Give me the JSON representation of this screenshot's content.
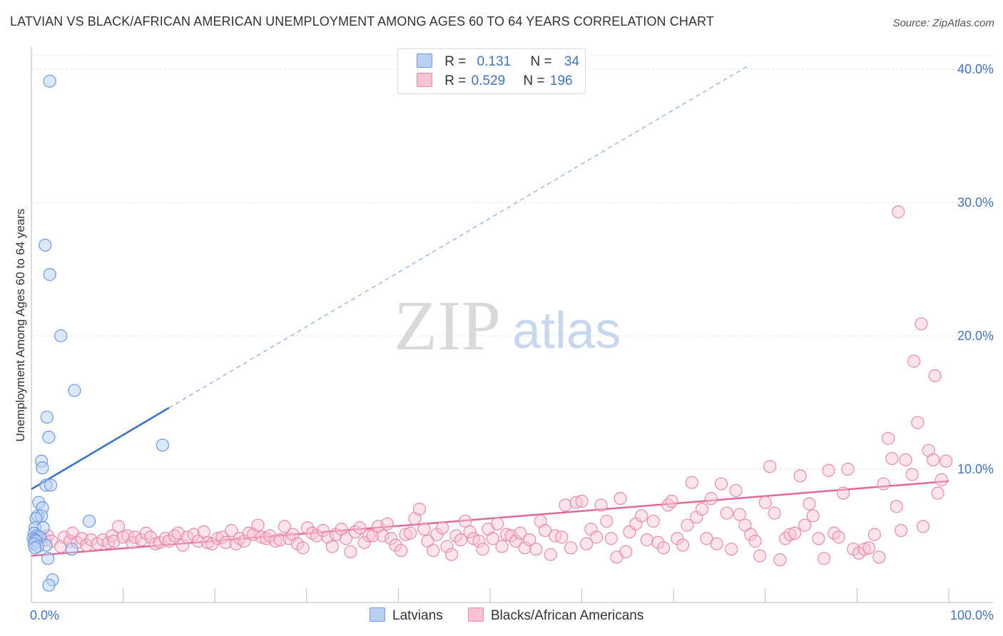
{
  "title": "LATVIAN VS BLACK/AFRICAN AMERICAN UNEMPLOYMENT AMONG AGES 60 TO 64 YEARS CORRELATION CHART",
  "source": "Source: ZipAtlas.com",
  "watermark": {
    "zip": "ZIP",
    "atlas": "atlas"
  },
  "colors": {
    "latvian_fill": "#b9d0f2",
    "latvian_stroke": "#6b9be0",
    "latvian_line": "#2f6fcf",
    "black_fill": "#f8c3d4",
    "black_stroke": "#e88aaa",
    "black_line": "#e0689a",
    "axis_text": "#3d74c9",
    "grid": "#dddddd"
  },
  "legend": {
    "rows": [
      {
        "r_label": "R =",
        "r_value": "0.131",
        "n_label": "N =",
        "n_value": "34"
      },
      {
        "r_label": "R =",
        "r_value": "0.529",
        "n_label": "N =",
        "n_value": "196"
      }
    ]
  },
  "bottom_legend": {
    "latvians": "Latvians",
    "blacks": "Blacks/African Americans"
  },
  "chart_data": {
    "type": "scatter",
    "title": "LATVIAN VS BLACK/AFRICAN AMERICAN UNEMPLOYMENT AMONG AGES 60 TO 64 YEARS CORRELATION CHART",
    "xlabel": "",
    "ylabel": "Unemployment Among Ages 60 to 64 years",
    "xlim": [
      0,
      100
    ],
    "ylim": [
      0,
      42
    ],
    "x_tick_labels": [
      "0.0%",
      "100.0%"
    ],
    "y_ticks": [
      10,
      20,
      30,
      40
    ],
    "y_tick_labels": [
      "10.0%",
      "20.0%",
      "30.0%",
      "40.0%"
    ],
    "grid": true,
    "series": [
      {
        "name": "Latvians",
        "R": 0.131,
        "N": 34,
        "trend": {
          "x0": 0,
          "y0": 8.5,
          "x1": 15,
          "y1": 14.6,
          "dashed_to_x": 78,
          "dashed_to_y": 40.2
        },
        "points": [
          [
            2.0,
            39.1
          ],
          [
            1.5,
            26.8
          ],
          [
            2.0,
            24.6
          ],
          [
            3.2,
            20.0
          ],
          [
            4.7,
            15.9
          ],
          [
            1.7,
            13.9
          ],
          [
            1.9,
            12.4
          ],
          [
            14.3,
            11.8
          ],
          [
            1.1,
            10.6
          ],
          [
            1.2,
            10.1
          ],
          [
            1.6,
            8.8
          ],
          [
            2.1,
            8.8
          ],
          [
            0.8,
            7.5
          ],
          [
            1.2,
            7.1
          ],
          [
            0.7,
            6.5
          ],
          [
            1.1,
            6.5
          ],
          [
            0.5,
            6.3
          ],
          [
            6.3,
            6.1
          ],
          [
            0.4,
            5.6
          ],
          [
            1.3,
            5.6
          ],
          [
            0.3,
            5.2
          ],
          [
            0.6,
            5.0
          ],
          [
            0.9,
            4.9
          ],
          [
            0.2,
            4.8
          ],
          [
            0.4,
            4.7
          ],
          [
            0.5,
            4.6
          ],
          [
            0.3,
            4.4
          ],
          [
            1.6,
            4.3
          ],
          [
            0.7,
            4.2
          ],
          [
            0.4,
            4.1
          ],
          [
            4.4,
            4.0
          ],
          [
            1.8,
            3.3
          ],
          [
            2.3,
            1.7
          ],
          [
            1.9,
            1.3
          ]
        ]
      },
      {
        "name": "Blacks/African Americans",
        "R": 0.529,
        "N": 196,
        "trend": {
          "x0": 0,
          "y0": 3.5,
          "x1": 100,
          "y1": 9.1
        },
        "points": [
          [
            1.0,
            4.9
          ],
          [
            1.5,
            4.7
          ],
          [
            1.8,
            5.0
          ],
          [
            2.2,
            4.6
          ],
          [
            3.2,
            4.2
          ],
          [
            3.6,
            4.9
          ],
          [
            4.2,
            4.6
          ],
          [
            4.5,
            5.2
          ],
          [
            5.0,
            4.5
          ],
          [
            5.5,
            4.8
          ],
          [
            6.0,
            4.3
          ],
          [
            6.5,
            4.7
          ],
          [
            7.2,
            4.4
          ],
          [
            7.8,
            4.7
          ],
          [
            8.4,
            4.5
          ],
          [
            8.8,
            5.0
          ],
          [
            9.0,
            4.6
          ],
          [
            9.5,
            5.7
          ],
          [
            10.0,
            4.9
          ],
          [
            10.5,
            5.0
          ],
          [
            11.0,
            4.5
          ],
          [
            11.3,
            4.9
          ],
          [
            12.0,
            4.7
          ],
          [
            12.5,
            5.2
          ],
          [
            13.0,
            4.9
          ],
          [
            13.5,
            4.4
          ],
          [
            14.0,
            4.5
          ],
          [
            14.6,
            4.8
          ],
          [
            15.0,
            4.6
          ],
          [
            15.6,
            5.0
          ],
          [
            16.0,
            5.2
          ],
          [
            16.5,
            4.3
          ],
          [
            17.0,
            4.9
          ],
          [
            17.7,
            5.1
          ],
          [
            18.2,
            4.6
          ],
          [
            18.8,
            5.3
          ],
          [
            19.2,
            4.5
          ],
          [
            19.7,
            4.4
          ],
          [
            20.3,
            4.8
          ],
          [
            20.8,
            4.9
          ],
          [
            21.2,
            4.5
          ],
          [
            21.8,
            5.4
          ],
          [
            22.3,
            4.4
          ],
          [
            22.7,
            4.8
          ],
          [
            23.2,
            4.6
          ],
          [
            23.7,
            5.2
          ],
          [
            24.2,
            5.1
          ],
          [
            24.7,
            5.8
          ],
          [
            25.1,
            4.9
          ],
          [
            25.6,
            4.8
          ],
          [
            26.0,
            5.0
          ],
          [
            26.6,
            4.6
          ],
          [
            27.1,
            4.7
          ],
          [
            27.6,
            5.7
          ],
          [
            28.1,
            4.8
          ],
          [
            28.5,
            5.1
          ],
          [
            29.0,
            4.4
          ],
          [
            29.6,
            4.1
          ],
          [
            30.1,
            5.6
          ],
          [
            30.6,
            5.2
          ],
          [
            31.1,
            5.0
          ],
          [
            31.8,
            5.4
          ],
          [
            32.3,
            4.9
          ],
          [
            32.8,
            4.2
          ],
          [
            33.2,
            5.1
          ],
          [
            33.8,
            5.5
          ],
          [
            34.3,
            4.8
          ],
          [
            34.8,
            3.8
          ],
          [
            35.3,
            5.3
          ],
          [
            35.8,
            5.6
          ],
          [
            36.3,
            4.5
          ],
          [
            36.8,
            5.0
          ],
          [
            37.2,
            5.0
          ],
          [
            37.8,
            5.7
          ],
          [
            38.3,
            5.0
          ],
          [
            38.8,
            5.9
          ],
          [
            39.2,
            4.8
          ],
          [
            39.7,
            4.3
          ],
          [
            40.3,
            3.9
          ],
          [
            40.8,
            5.1
          ],
          [
            41.3,
            5.2
          ],
          [
            41.8,
            6.3
          ],
          [
            42.3,
            7.0
          ],
          [
            42.8,
            5.5
          ],
          [
            43.2,
            4.6
          ],
          [
            43.8,
            3.9
          ],
          [
            44.2,
            5.1
          ],
          [
            44.8,
            5.6
          ],
          [
            45.3,
            4.2
          ],
          [
            45.8,
            3.6
          ],
          [
            46.3,
            5.0
          ],
          [
            46.8,
            4.7
          ],
          [
            47.3,
            6.1
          ],
          [
            47.8,
            5.3
          ],
          [
            48.2,
            4.8
          ],
          [
            48.8,
            4.6
          ],
          [
            49.2,
            4.0
          ],
          [
            49.8,
            5.5
          ],
          [
            50.3,
            4.8
          ],
          [
            50.8,
            5.9
          ],
          [
            51.3,
            4.2
          ],
          [
            51.8,
            5.1
          ],
          [
            52.3,
            5.0
          ],
          [
            52.8,
            4.6
          ],
          [
            53.3,
            5.2
          ],
          [
            53.8,
            4.1
          ],
          [
            54.3,
            4.7
          ],
          [
            55.0,
            4.0
          ],
          [
            55.5,
            6.1
          ],
          [
            56.0,
            5.4
          ],
          [
            56.6,
            3.6
          ],
          [
            57.1,
            5.0
          ],
          [
            57.8,
            4.9
          ],
          [
            58.2,
            7.3
          ],
          [
            58.8,
            4.1
          ],
          [
            59.4,
            7.5
          ],
          [
            60.0,
            7.6
          ],
          [
            60.5,
            4.4
          ],
          [
            61.0,
            5.5
          ],
          [
            61.6,
            4.9
          ],
          [
            62.1,
            7.3
          ],
          [
            62.7,
            6.1
          ],
          [
            63.2,
            4.8
          ],
          [
            63.8,
            3.4
          ],
          [
            64.2,
            7.8
          ],
          [
            64.8,
            3.8
          ],
          [
            65.2,
            5.3
          ],
          [
            65.9,
            5.9
          ],
          [
            66.5,
            6.5
          ],
          [
            67.1,
            4.7
          ],
          [
            67.8,
            6.1
          ],
          [
            68.3,
            4.5
          ],
          [
            68.9,
            4.1
          ],
          [
            69.4,
            7.3
          ],
          [
            69.8,
            7.6
          ],
          [
            70.4,
            4.8
          ],
          [
            71.0,
            4.3
          ],
          [
            71.5,
            5.8
          ],
          [
            72.0,
            9.0
          ],
          [
            72.5,
            6.4
          ],
          [
            73.1,
            7.0
          ],
          [
            73.6,
            4.8
          ],
          [
            74.1,
            7.8
          ],
          [
            74.7,
            4.4
          ],
          [
            75.2,
            8.9
          ],
          [
            75.8,
            6.7
          ],
          [
            76.3,
            4.0
          ],
          [
            76.8,
            8.4
          ],
          [
            77.2,
            6.6
          ],
          [
            77.8,
            5.8
          ],
          [
            78.4,
            5.1
          ],
          [
            78.9,
            4.6
          ],
          [
            79.4,
            3.5
          ],
          [
            80.0,
            7.5
          ],
          [
            80.5,
            10.2
          ],
          [
            81.0,
            6.7
          ],
          [
            81.6,
            3.2
          ],
          [
            82.2,
            4.8
          ],
          [
            82.7,
            5.1
          ],
          [
            83.2,
            5.2
          ],
          [
            83.8,
            9.5
          ],
          [
            84.3,
            5.8
          ],
          [
            84.8,
            7.4
          ],
          [
            85.2,
            6.5
          ],
          [
            85.8,
            4.8
          ],
          [
            86.4,
            3.3
          ],
          [
            86.9,
            9.9
          ],
          [
            87.5,
            5.2
          ],
          [
            88.0,
            4.9
          ],
          [
            88.5,
            8.2
          ],
          [
            89.0,
            10.0
          ],
          [
            89.6,
            4.0
          ],
          [
            90.2,
            3.7
          ],
          [
            90.8,
            4.0
          ],
          [
            91.3,
            4.1
          ],
          [
            91.9,
            5.1
          ],
          [
            92.4,
            3.4
          ],
          [
            92.9,
            8.9
          ],
          [
            93.4,
            12.3
          ],
          [
            93.8,
            10.8
          ],
          [
            94.3,
            7.2
          ],
          [
            94.8,
            5.4
          ],
          [
            95.3,
            10.7
          ],
          [
            96.0,
            9.6
          ],
          [
            96.6,
            13.5
          ],
          [
            97.2,
            5.7
          ],
          [
            97.8,
            11.4
          ],
          [
            98.3,
            10.7
          ],
          [
            98.8,
            8.2
          ],
          [
            99.2,
            9.2
          ],
          [
            99.7,
            10.6
          ],
          [
            94.5,
            29.3
          ],
          [
            97.0,
            20.9
          ],
          [
            96.2,
            18.1
          ],
          [
            98.5,
            17.0
          ]
        ]
      }
    ]
  }
}
